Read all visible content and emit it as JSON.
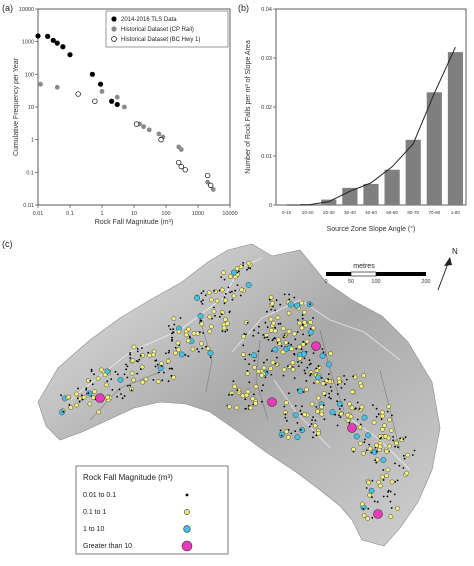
{
  "panel_labels": {
    "a": "(a)",
    "b": "(b)",
    "c": "(c)"
  },
  "chart_data": [
    {
      "type": "scatter",
      "xscale": "log",
      "yscale": "log",
      "xlabel": "Rock Fall Magnitude (m³)",
      "ylabel": "Cumulative Frequency per Year",
      "xlim": [
        0.01,
        10000
      ],
      "ylim": [
        0.01,
        10000
      ],
      "xticks": [
        "0.01",
        "0.1",
        "1",
        "10",
        "100",
        "1000",
        "10000"
      ],
      "yticks": [
        "0.01",
        "0.1",
        "1",
        "10",
        "100",
        "1000",
        "10000"
      ],
      "legend_position": "top-right",
      "series": [
        {
          "name": "2014-2016 TLS Data",
          "marker": "filled-black",
          "x": [
            0.01,
            0.02,
            0.03,
            0.04,
            0.06,
            0.1,
            0.5,
            0.9,
            2.0,
            3.0
          ],
          "y": [
            1500,
            1450,
            1100,
            900,
            700,
            400,
            100,
            50,
            15,
            12
          ]
        },
        {
          "name": "Historical Dataset (CP Rail)",
          "marker": "filled-gray",
          "x": [
            0.012,
            0.04,
            1.0,
            3.0,
            5.0,
            15,
            20,
            30,
            60,
            80,
            250,
            300,
            2000,
            3000
          ],
          "y": [
            50,
            40,
            30,
            20,
            10,
            3,
            2.5,
            2,
            1.5,
            1.2,
            0.6,
            0.5,
            0.05,
            0.03
          ]
        },
        {
          "name": "Historical Dataset (BC Hwy 1)",
          "marker": "open",
          "x": [
            0.18,
            0.6,
            12,
            70,
            250,
            300,
            400,
            2000,
            2500
          ],
          "y": [
            25,
            15,
            3,
            1,
            0.2,
            0.15,
            0.12,
            0.08,
            0.04
          ]
        }
      ]
    },
    {
      "type": "bar",
      "xlabel": "Source Zone Slope Angle (°)",
      "ylabel": "Number of Rock Falls per m² of Slope Area",
      "categories": [
        "0-10",
        "10-20",
        "20-30",
        "30-40",
        "40-50",
        "50-60",
        "60-70",
        "70-80",
        "≥ 80"
      ],
      "values": [
        0.0,
        0.0002,
        0.0011,
        0.0035,
        0.0043,
        0.0072,
        0.0133,
        0.023,
        0.0312
      ],
      "trend_values": [
        0.0,
        0.0,
        0.0007,
        0.0028,
        0.0045,
        0.0078,
        0.0125,
        0.0228,
        0.0322
      ],
      "ylim": [
        0,
        0.04
      ],
      "yticks": [
        "0",
        "0.01",
        "0.02",
        "0.03",
        "0.04"
      ],
      "bar_color": "#7f7f7f"
    }
  ],
  "map": {
    "north_label": "N",
    "scale_title": "metres",
    "scale_ticks": [
      "0",
      "50",
      "100",
      "200"
    ],
    "legend_title": "Rock Fall Magnitude (m³)",
    "legend_items": [
      {
        "label": "0.01 to 0.1",
        "color": "#000000"
      },
      {
        "label": "0.1 to 1",
        "color": "#f4f07a"
      },
      {
        "label": "1 to 10",
        "color": "#45c1e6"
      },
      {
        "label": "Greater than 10",
        "color": "#e83ab9"
      }
    ]
  }
}
